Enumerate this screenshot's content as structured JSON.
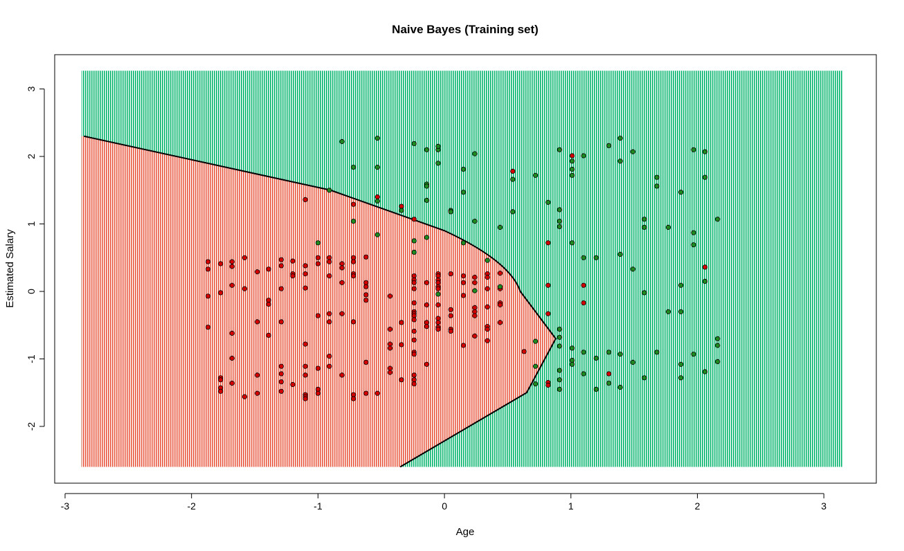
{
  "chart_data": {
    "type": "scatter",
    "title": "Naive Bayes (Training set)",
    "xlabel": "Age",
    "ylabel": "Estimated Salary",
    "xlim": [
      -3.05,
      3.35
    ],
    "ylim": [
      -2.88,
      3.5
    ],
    "x_ticks": [
      -3,
      -2,
      -1,
      0,
      1,
      2,
      3
    ],
    "y_ticks": [
      -2,
      -1,
      0,
      1,
      2,
      3
    ],
    "grid": false,
    "legend": "none",
    "region": {
      "x_range": [
        -2.87,
        3.15
      ],
      "y_range": [
        -2.6,
        3.27
      ],
      "decision_boundary": {
        "description_points_y": [
          2.3,
          1.5,
          0.9,
          0.0,
          -0.7,
          -1.5,
          -2.6
        ],
        "description_points_x": [
          -2.85,
          -0.9,
          0.0,
          0.6,
          0.88,
          0.65,
          -0.35
        ]
      }
    },
    "colors": {
      "region_purchased": "#00b36b",
      "region_not_purchased": "#e8553d",
      "point_purchased": "#1f8a1f",
      "point_not_purchased": "#d40000",
      "boundary": "#000000"
    },
    "series": [
      {
        "points": [
          [
            -1.87,
            0.44
          ],
          [
            -1.87,
            0.33
          ],
          [
            -1.87,
            -0.07
          ],
          [
            -1.87,
            -0.53
          ],
          [
            -1.77,
            0.41
          ],
          [
            -1.77,
            -0.02
          ],
          [
            -1.77,
            -1.28
          ],
          [
            -1.77,
            -1.31
          ],
          [
            -1.77,
            -1.43
          ],
          [
            -1.77,
            -1.48
          ],
          [
            -1.68,
            0.44
          ],
          [
            -1.68,
            0.37
          ],
          [
            -1.68,
            0.09
          ],
          [
            -1.68,
            -0.62
          ],
          [
            -1.68,
            -0.99
          ],
          [
            -1.68,
            -1.36
          ],
          [
            -1.58,
            0.5
          ],
          [
            -1.58,
            0.04
          ],
          [
            -1.58,
            -1.56
          ],
          [
            -1.48,
            0.29
          ],
          [
            -1.48,
            -0.45
          ],
          [
            -1.48,
            -1.24
          ],
          [
            -1.48,
            -1.51
          ],
          [
            -1.39,
            0.33
          ],
          [
            -1.39,
            -0.13
          ],
          [
            -1.39,
            -0.19
          ],
          [
            -1.39,
            -0.65
          ],
          [
            -1.29,
            0.47
          ],
          [
            -1.29,
            0.38
          ],
          [
            -1.29,
            0.04
          ],
          [
            -1.29,
            -0.45
          ],
          [
            -1.29,
            -1.11
          ],
          [
            -1.29,
            -1.22
          ],
          [
            -1.29,
            -1.34
          ],
          [
            -1.29,
            -1.48
          ],
          [
            -1.2,
            0.45
          ],
          [
            -1.2,
            0.26
          ],
          [
            -1.2,
            0.23
          ],
          [
            -1.2,
            -1.38
          ],
          [
            -1.1,
            1.36
          ],
          [
            -1.1,
            0.38
          ],
          [
            -1.1,
            0.26
          ],
          [
            -1.1,
            0.05
          ],
          [
            -1.1,
            -0.78
          ],
          [
            -1.1,
            -1.11
          ],
          [
            -1.1,
            -1.24
          ],
          [
            -1.1,
            -1.53
          ],
          [
            -1.1,
            -1.56
          ],
          [
            -1.1,
            -1.59
          ],
          [
            -1.0,
            0.5
          ],
          [
            -1.0,
            0.41
          ],
          [
            -1.0,
            -0.36
          ],
          [
            -1.0,
            -1.14
          ],
          [
            -1.0,
            -1.45
          ],
          [
            -1.0,
            -1.51
          ],
          [
            -0.91,
            0.5
          ],
          [
            -0.91,
            0.44
          ],
          [
            -0.91,
            0.23
          ],
          [
            -0.91,
            -0.33
          ],
          [
            -0.91,
            -0.45
          ],
          [
            -0.91,
            -0.96
          ],
          [
            -0.91,
            -1.11
          ],
          [
            -0.81,
            0.41
          ],
          [
            -0.81,
            0.35
          ],
          [
            -0.81,
            0.13
          ],
          [
            -0.81,
            -0.33
          ],
          [
            -0.81,
            -1.24
          ],
          [
            -0.72,
            1.29
          ],
          [
            -0.72,
            0.5
          ],
          [
            -0.72,
            0.44
          ],
          [
            -0.72,
            0.26
          ],
          [
            -0.72,
            0.23
          ],
          [
            -0.72,
            -0.45
          ],
          [
            -0.72,
            -1.53
          ],
          [
            -0.72,
            -1.59
          ],
          [
            -0.62,
            0.51
          ],
          [
            -0.62,
            0.13
          ],
          [
            -0.62,
            0.07
          ],
          [
            -0.62,
            -0.05
          ],
          [
            -0.62,
            -0.13
          ],
          [
            -0.62,
            -1.05
          ],
          [
            -0.62,
            -1.51
          ],
          [
            -0.53,
            1.4
          ],
          [
            -0.53,
            -1.51
          ],
          [
            -0.43,
            -0.07
          ],
          [
            -0.43,
            -0.56
          ],
          [
            -0.43,
            -0.78
          ],
          [
            -0.43,
            -0.84
          ],
          [
            -0.43,
            -1.14
          ],
          [
            -0.43,
            -1.2
          ],
          [
            -0.34,
            1.26
          ],
          [
            -0.34,
            -0.46
          ],
          [
            -0.34,
            -0.79
          ],
          [
            -0.34,
            -1.31
          ],
          [
            -0.24,
            1.07
          ],
          [
            -0.24,
            0.23
          ],
          [
            -0.24,
            0.17
          ],
          [
            -0.24,
            0.13
          ],
          [
            -0.24,
            0.04
          ],
          [
            -0.24,
            -0.17
          ],
          [
            -0.24,
            -0.3
          ],
          [
            -0.24,
            -0.33
          ],
          [
            -0.24,
            -0.36
          ],
          [
            -0.24,
            -0.42
          ],
          [
            -0.24,
            -0.59
          ],
          [
            -0.24,
            -0.72
          ],
          [
            -0.24,
            -0.9
          ],
          [
            -0.24,
            -0.93
          ],
          [
            -0.24,
            -1.24
          ],
          [
            -0.24,
            -1.31
          ],
          [
            -0.24,
            -1.37
          ],
          [
            -0.14,
            0.13
          ],
          [
            -0.14,
            -0.2
          ],
          [
            -0.14,
            -0.46
          ],
          [
            -0.14,
            -0.52
          ],
          [
            -0.14,
            -1.08
          ],
          [
            -0.05,
            0.26
          ],
          [
            -0.05,
            0.23
          ],
          [
            -0.05,
            0.17
          ],
          [
            -0.05,
            0.13
          ],
          [
            -0.05,
            0.07
          ],
          [
            -0.05,
            0.04
          ],
          [
            -0.05,
            -0.2
          ],
          [
            -0.05,
            -0.4
          ],
          [
            -0.05,
            -0.46
          ],
          [
            -0.05,
            -0.53
          ],
          [
            -0.05,
            -0.56
          ],
          [
            0.05,
            0.26
          ],
          [
            0.05,
            -0.27
          ],
          [
            0.05,
            -0.36
          ],
          [
            0.05,
            -0.56
          ],
          [
            0.05,
            -0.59
          ],
          [
            0.15,
            0.23
          ],
          [
            0.15,
            0.13
          ],
          [
            0.15,
            -0.06
          ],
          [
            0.15,
            -0.8
          ],
          [
            0.24,
            0.21
          ],
          [
            0.24,
            0.13
          ],
          [
            0.24,
            -0.24
          ],
          [
            0.24,
            -0.3
          ],
          [
            0.24,
            -0.36
          ],
          [
            0.24,
            -0.66
          ],
          [
            0.34,
            0.26
          ],
          [
            0.34,
            0.21
          ],
          [
            0.34,
            0.04
          ],
          [
            0.34,
            -0.23
          ],
          [
            0.34,
            -0.52
          ],
          [
            0.34,
            -0.56
          ],
          [
            0.34,
            -0.73
          ],
          [
            0.44,
            0.27
          ],
          [
            0.44,
            0.04
          ],
          [
            0.44,
            -0.17
          ],
          [
            0.44,
            -0.2
          ],
          [
            0.44,
            -0.46
          ],
          [
            0.54,
            1.78
          ],
          [
            0.63,
            -0.89
          ],
          [
            0.82,
            0.72
          ],
          [
            0.82,
            0.09
          ],
          [
            0.82,
            -0.33
          ],
          [
            0.82,
            -1.35
          ],
          [
            0.82,
            -1.39
          ],
          [
            1.01,
            2.01
          ],
          [
            1.1,
            0.09
          ],
          [
            1.1,
            -0.17
          ],
          [
            2.06,
            0.36
          ],
          [
            1.3,
            -1.22
          ]
        ]
      },
      {
        "points": [
          [
            -0.81,
            2.22
          ],
          [
            -0.53,
            2.27
          ],
          [
            -0.24,
            2.19
          ],
          [
            -0.14,
            2.1
          ],
          [
            -0.05,
            2.1
          ],
          [
            -0.05,
            2.15
          ],
          [
            -0.05,
            1.9
          ],
          [
            -0.72,
            1.84
          ],
          [
            -0.53,
            1.84
          ],
          [
            -0.14,
            1.59
          ],
          [
            -0.14,
            1.56
          ],
          [
            -0.14,
            1.35
          ],
          [
            -0.91,
            1.5
          ],
          [
            -0.53,
            1.34
          ],
          [
            -0.72,
            1.04
          ],
          [
            -0.53,
            0.84
          ],
          [
            -0.34,
            1.2
          ],
          [
            -0.24,
            0.75
          ],
          [
            -0.24,
            0.58
          ],
          [
            -0.14,
            0.8
          ],
          [
            -1.0,
            0.72
          ],
          [
            0.05,
            1.2
          ],
          [
            0.05,
            1.18
          ],
          [
            0.15,
            1.81
          ],
          [
            0.15,
            1.47
          ],
          [
            0.15,
            0.72
          ],
          [
            0.24,
            2.04
          ],
          [
            0.24,
            1.04
          ],
          [
            0.34,
            0.46
          ],
          [
            0.44,
            0.95
          ],
          [
            0.44,
            0.07
          ],
          [
            0.54,
            1.66
          ],
          [
            0.54,
            1.18
          ],
          [
            0.72,
            1.72
          ],
          [
            0.82,
            1.32
          ],
          [
            0.91,
            2.1
          ],
          [
            0.91,
            1.21
          ],
          [
            0.91,
            1.04
          ],
          [
            0.91,
            0.96
          ],
          [
            1.01,
            1.93
          ],
          [
            1.01,
            1.81
          ],
          [
            1.01,
            1.72
          ],
          [
            1.01,
            0.72
          ],
          [
            1.1,
            2.01
          ],
          [
            1.1,
            0.5
          ],
          [
            1.2,
            0.5
          ],
          [
            1.3,
            2.16
          ],
          [
            1.39,
            2.27
          ],
          [
            1.39,
            1.93
          ],
          [
            1.39,
            0.55
          ],
          [
            1.49,
            2.07
          ],
          [
            1.49,
            0.33
          ],
          [
            1.58,
            1.07
          ],
          [
            1.58,
            0.95
          ],
          [
            1.58,
            -0.02
          ],
          [
            1.68,
            1.69
          ],
          [
            1.68,
            1.56
          ],
          [
            1.77,
            0.95
          ],
          [
            1.77,
            -0.3
          ],
          [
            1.87,
            1.47
          ],
          [
            1.87,
            0.09
          ],
          [
            1.87,
            -0.3
          ],
          [
            1.97,
            2.1
          ],
          [
            1.97,
            0.87
          ],
          [
            1.97,
            0.69
          ],
          [
            2.06,
            2.07
          ],
          [
            2.06,
            1.69
          ],
          [
            2.06,
            0.15
          ],
          [
            2.16,
            1.07
          ],
          [
            2.16,
            -0.7
          ],
          [
            2.16,
            -0.8
          ],
          [
            2.16,
            -1.04
          ],
          [
            0.24,
            0.01
          ],
          [
            -0.05,
            -0.04
          ],
          [
            0.72,
            -0.74
          ],
          [
            0.72,
            -1.11
          ],
          [
            0.72,
            -1.37
          ],
          [
            0.91,
            -0.56
          ],
          [
            0.91,
            -0.68
          ],
          [
            0.91,
            -0.81
          ],
          [
            0.91,
            -1.17
          ],
          [
            0.91,
            -1.31
          ],
          [
            0.91,
            -1.45
          ],
          [
            1.01,
            -0.84
          ],
          [
            1.01,
            -1.02
          ],
          [
            1.01,
            -1.08
          ],
          [
            1.1,
            -0.9
          ],
          [
            1.1,
            -1.22
          ],
          [
            1.2,
            -0.99
          ],
          [
            1.2,
            -1.45
          ],
          [
            1.3,
            -0.9
          ],
          [
            1.3,
            -1.36
          ],
          [
            1.39,
            -0.93
          ],
          [
            1.39,
            -1.42
          ],
          [
            1.49,
            -1.05
          ],
          [
            1.58,
            -1.28
          ],
          [
            1.68,
            -0.9
          ],
          [
            1.87,
            -1.08
          ],
          [
            1.87,
            -1.28
          ],
          [
            1.97,
            -0.93
          ],
          [
            2.06,
            -1.19
          ]
        ]
      }
    ]
  }
}
